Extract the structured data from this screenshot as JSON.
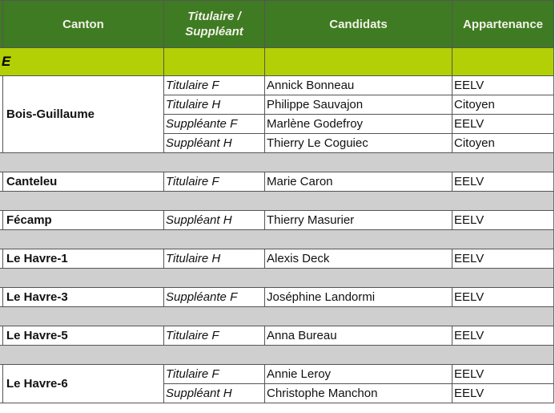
{
  "header": {
    "canton": "Canton",
    "role_line1": "Titulaire /",
    "role_line2": "Suppléant",
    "candidats": "Candidats",
    "appartenance": "Appartenance"
  },
  "band": {
    "label": "E"
  },
  "colors": {
    "header_bg": "#3f7b22",
    "band_bg": "#b2d005",
    "separator_bg": "#cfcfcf"
  },
  "cantons": [
    {
      "name": "Bois-Guillaume",
      "rows": [
        {
          "role": "Titulaire F",
          "candidat": "Annick Bonneau",
          "appartenance": "EELV"
        },
        {
          "role": "Titulaire H",
          "candidat": "Philippe Sauvajon",
          "appartenance": "Citoyen"
        },
        {
          "role": "Suppléante F",
          "candidat": "Marlène Godefroy",
          "appartenance": "EELV"
        },
        {
          "role": "Suppléant H",
          "candidat": "Thierry Le Coguiec",
          "appartenance": "Citoyen"
        }
      ]
    },
    {
      "name": "Canteleu",
      "rows": [
        {
          "role": "Titulaire F",
          "candidat": "Marie Caron",
          "appartenance": "EELV"
        }
      ]
    },
    {
      "name": "Fécamp",
      "rows": [
        {
          "role": "Suppléant H",
          "candidat": "Thierry Masurier",
          "appartenance": "EELV"
        }
      ]
    },
    {
      "name": "Le Havre-1",
      "rows": [
        {
          "role": "Titulaire H",
          "candidat": "Alexis Deck",
          "appartenance": "EELV"
        }
      ]
    },
    {
      "name": "Le Havre-3",
      "rows": [
        {
          "role": "Suppléante F",
          "candidat": "Joséphine Landormi",
          "appartenance": "EELV"
        }
      ]
    },
    {
      "name": "Le Havre-5",
      "rows": [
        {
          "role": "Titulaire F",
          "candidat": "Anna Bureau",
          "appartenance": "EELV"
        }
      ]
    },
    {
      "name": "Le Havre-6",
      "rows": [
        {
          "role": "Titulaire F",
          "candidat": "Annie Leroy",
          "appartenance": "EELV"
        },
        {
          "role": "Suppléant H",
          "candidat": "Christophe Manchon",
          "appartenance": "EELV"
        }
      ]
    }
  ]
}
